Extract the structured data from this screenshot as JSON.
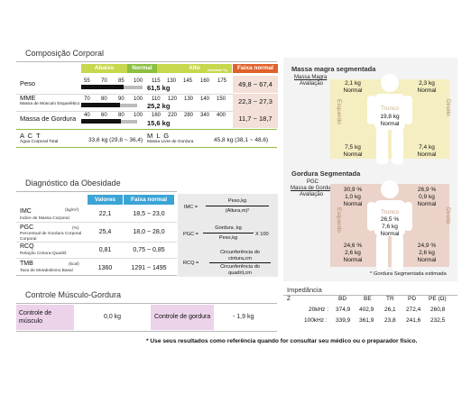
{
  "composition": {
    "title": "Composição Corporal",
    "headers": {
      "abaixo": "Abaixo",
      "normal": "Normal",
      "alto": "Alto",
      "unit": "(Unidade %)",
      "range": "Faixa normal"
    },
    "peso": {
      "label": "Peso",
      "scale": [
        "55",
        "70",
        "85",
        "100",
        "115",
        "130",
        "145",
        "160",
        "175"
      ],
      "value": "61,5 kg",
      "range": "49,8 ~ 67,4",
      "fill_pct": 67
    },
    "mme": {
      "label": "MME",
      "sub": "Massa de Músculo Esquelético",
      "scale": [
        "70",
        "80",
        "90",
        "100",
        "110",
        "120",
        "130",
        "140",
        "150"
      ],
      "value": "25,2 kg",
      "range": "22,3 ~ 27,3",
      "fill_pct": 62
    },
    "gordura": {
      "label": "Massa de Gordura",
      "scale": [
        "40",
        "60",
        "80",
        "100",
        "160",
        "220",
        "280",
        "340",
        "400"
      ],
      "value": "15,6 kg",
      "range": "11,7 ~ 18,7",
      "fill_pct": 63
    },
    "act": {
      "label": "A C T",
      "sub": "Água Corporal Total",
      "value": "33,6 kg (29,8 ~ 36,4)"
    },
    "mlg": {
      "label": "M L G",
      "sub": "Massa Livre de Gordura",
      "value": "45,8 kg (38,1 ~ 48,6)"
    },
    "colors": {
      "abaixo": "#c7d74e",
      "normal": "#8cbf3f",
      "alto": "#c7d74e",
      "range": "#e0622b"
    }
  },
  "obesity": {
    "title": "Diagnóstico da Obesidade",
    "headers": {
      "values": "Valores",
      "range": "Faixa normal"
    },
    "rows": [
      {
        "label": "IMC",
        "unit": "(kg/m²)",
        "sub": "Índice de Massa Corporal",
        "value": "22,1",
        "range": "18,5 ~ 23,0"
      },
      {
        "label": "PGC",
        "unit": "(%)",
        "sub": "Percentual de Gordura Corporal",
        "value": "25,4",
        "range": "18,0 ~ 28,0"
      },
      {
        "label": "RCQ",
        "unit": "",
        "sub": "Relação Cintura-Quadril",
        "value": "0,81",
        "range": "0,75 ~ 0,85"
      },
      {
        "label": "TMB",
        "unit": "(kcal)",
        "sub": "Taxa de Metabolismo Basal",
        "value": "1360",
        "range": "1291 ~ 1495"
      }
    ],
    "formulas": {
      "imc": "IMC =",
      "imc_num": "Peso,kg",
      "imc_den": "(Altura,m)²",
      "pgc": "PGC =",
      "pgc_num": "Gordura ,kg",
      "pgc_den": "Peso,kg",
      "pgc_mult": "X 100",
      "rcq": "RCQ =",
      "rcq_num1": "Circunferência do",
      "rcq_num2": "cintura,cm",
      "rcq_den1": "Circunferência do",
      "rcq_den2": "quadril,cm"
    }
  },
  "control": {
    "title": "Controle Músculo-Gordura",
    "muscle_label": "Controle de músculo",
    "muscle_value": "0,0 kg",
    "fat_label": "Controle de gordura",
    "fat_value": "- 1,9 kg"
  },
  "lean": {
    "title": "Massa magra segmentada",
    "legend1": "Massa Magra",
    "legend2": "Avaliação",
    "left_arm": {
      "kg": "2,1 kg",
      "eval": "Normal"
    },
    "right_arm": {
      "kg": "2,3 kg",
      "eval": "Normal"
    },
    "trunk": {
      "label": "Tronco",
      "kg": "19,8 kg",
      "eval": "Normal"
    },
    "left_leg": {
      "kg": "7,5 kg",
      "eval": "Normal"
    },
    "right_leg": {
      "kg": "7,4 kg",
      "eval": "Normal"
    },
    "left": "Esquerdo",
    "right": "Direito"
  },
  "fat": {
    "title": "Gordura Segmentada",
    "legend1": "PGC",
    "legend2": "Massa de Gordura",
    "legend3": "Avaliação",
    "left_arm": {
      "pct": "30,9 %",
      "kg": "1,0 kg",
      "eval": "Normal"
    },
    "right_arm": {
      "pct": "26,9 %",
      "kg": "0,9 kg",
      "eval": "Normal"
    },
    "trunk": {
      "label": "Tronco",
      "pct": "26,5 %",
      "kg": "7,6 kg",
      "eval": "Normal"
    },
    "left_leg": {
      "pct": "24,6 %",
      "kg": "2,6 kg",
      "eval": "Normal"
    },
    "right_leg": {
      "pct": "24,9 %",
      "kg": "2,6 kg",
      "eval": "Normal"
    },
    "left": "Esquerdo",
    "right": "Direito",
    "note": "* Gordura Segmentada estimada"
  },
  "impedance": {
    "title": "Impedância",
    "z": "Z",
    "cols": [
      "BD",
      "BE",
      "TR",
      "PD",
      "PE (Ω)"
    ],
    "rows": [
      {
        "freq": "20kHz :",
        "vals": [
          "374,9",
          "402,9",
          "26,1",
          "272,4",
          "260,8"
        ]
      },
      {
        "freq": "100kHz :",
        "vals": [
          "339,9",
          "361,9",
          "23,8",
          "241,6",
          "232,5"
        ]
      }
    ]
  },
  "footer": "* Use seus resultados como referência quando for consultar seu médico ou o preparador físico."
}
